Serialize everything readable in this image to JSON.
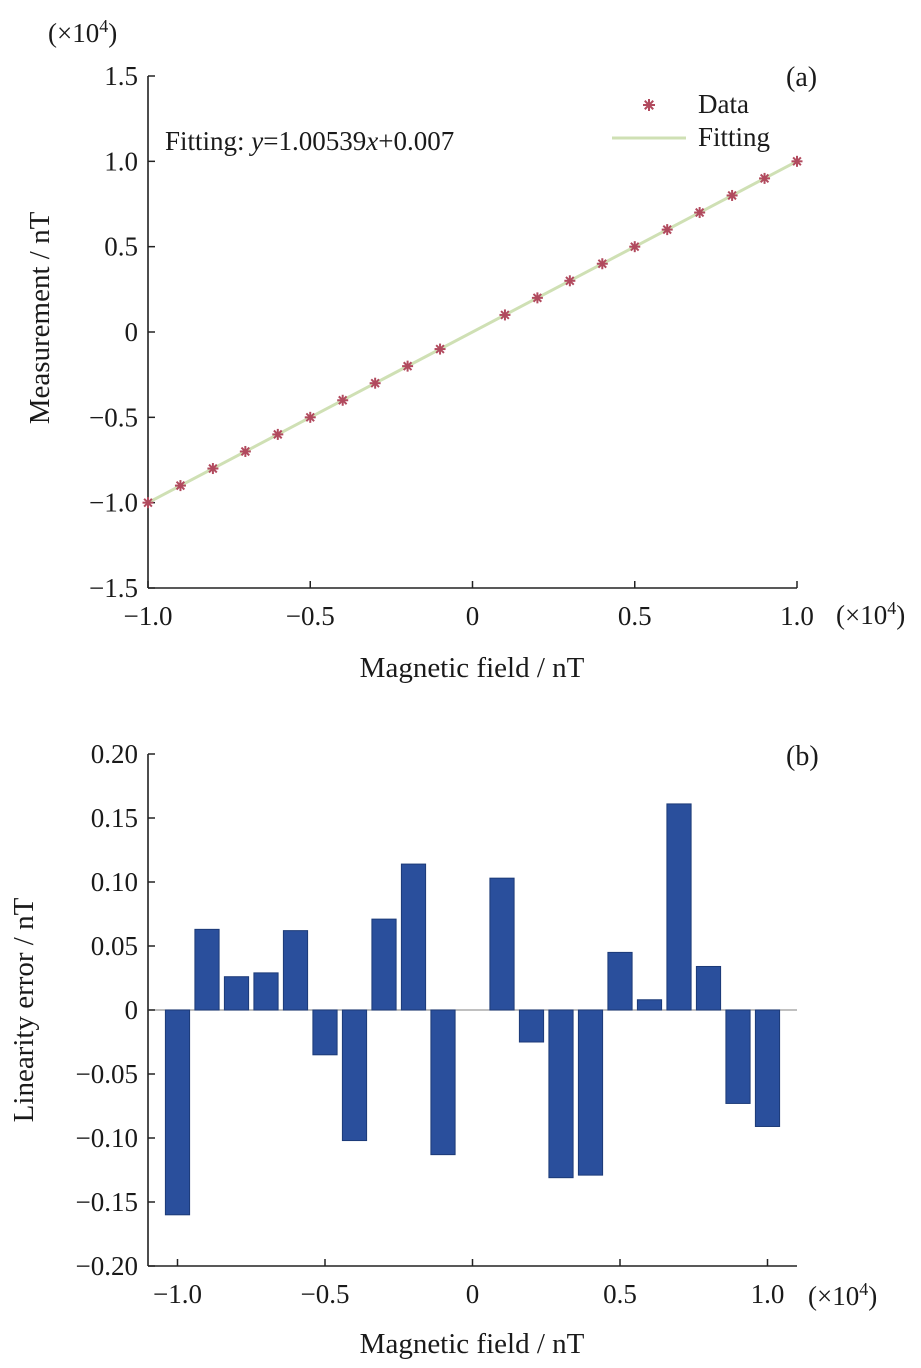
{
  "chart_data": [
    {
      "type": "line",
      "panel_label": "(a)",
      "xlabel": "Magnetic field / nT",
      "ylabel": "Measurement / nT",
      "x_multiplier": "(×10",
      "y_multiplier": "(×10",
      "multiplier_exponent": "4",
      "multiplier_close": ")",
      "xlim": [
        -1.0,
        1.0
      ],
      "ylim": [
        -1.5,
        1.5
      ],
      "x_ticks": [
        -1.0,
        -0.5,
        0,
        0.5,
        1.0
      ],
      "x_tick_labels": [
        "−1.0",
        "−0.5",
        "0",
        "0.5",
        "1.0"
      ],
      "y_ticks": [
        1.5,
        1.0,
        0.5,
        0,
        -0.5,
        -1.0,
        -1.5
      ],
      "y_tick_labels": [
        "1.5",
        "1.0",
        "0.5",
        "0",
        "−0.5",
        "−1.0",
        "−1.5"
      ],
      "annotation": {
        "prefix": "Fitting: ",
        "y_var": "y",
        "equals": "=1.00539",
        "x_var": "x",
        "suffix": "+0.007"
      },
      "fit": {
        "slope": 1.00539,
        "intercept": 0.007
      },
      "grid": false,
      "legend_position": "top-right",
      "series": [
        {
          "name": "Data",
          "style": "star-marker",
          "color": "#b14a5e",
          "x": [
            -1.0,
            -0.9,
            -0.8,
            -0.7,
            -0.6,
            -0.5,
            -0.4,
            -0.3,
            -0.2,
            -0.1,
            0.1,
            0.2,
            0.3,
            0.4,
            0.5,
            0.6,
            0.7,
            0.8,
            0.9,
            1.0
          ],
          "y": [
            -1.0,
            -0.9,
            -0.8,
            -0.7,
            -0.6,
            -0.5,
            -0.4,
            -0.3,
            -0.2,
            -0.1,
            0.1,
            0.2,
            0.3,
            0.4,
            0.5,
            0.6,
            0.7,
            0.8,
            0.9,
            1.0
          ]
        },
        {
          "name": "Fitting",
          "style": "line",
          "color": "#cfe0b4",
          "x": [
            -1.0,
            1.0
          ],
          "y": [
            -1.0,
            1.0
          ]
        }
      ]
    },
    {
      "type": "bar",
      "panel_label": "(b)",
      "xlabel": "Magnetic field / nT",
      "ylabel": "Linearity error / nT",
      "x_multiplier": "(×10",
      "multiplier_exponent": "4",
      "multiplier_close": ")",
      "xlim": [
        -1.1,
        1.1
      ],
      "ylim": [
        -0.2,
        0.2
      ],
      "x_ticks": [
        -1.0,
        -0.5,
        0,
        0.5,
        1.0
      ],
      "x_tick_labels": [
        "−1.0",
        "−0.5",
        "0",
        "0.5",
        "1.0"
      ],
      "y_ticks": [
        0.2,
        0.15,
        0.1,
        0.05,
        0,
        -0.05,
        -0.1,
        -0.15,
        -0.2
      ],
      "y_tick_labels": [
        "0.20",
        "0.15",
        "0.10",
        "0.05",
        "0",
        "−0.05",
        "−0.10",
        "−0.15",
        "−0.20"
      ],
      "grid": false,
      "bar_color": "#2a4f9c",
      "x": [
        -1.0,
        -0.9,
        -0.8,
        -0.7,
        -0.6,
        -0.5,
        -0.4,
        -0.3,
        -0.2,
        -0.1,
        0.1,
        0.2,
        0.3,
        0.4,
        0.5,
        0.6,
        0.7,
        0.8,
        0.9,
        1.0
      ],
      "values": [
        -0.16,
        0.063,
        0.026,
        0.029,
        0.062,
        -0.035,
        -0.102,
        0.071,
        0.114,
        -0.113,
        0.103,
        -0.025,
        -0.131,
        -0.129,
        0.045,
        0.008,
        0.161,
        0.034,
        -0.073,
        -0.091
      ]
    }
  ]
}
